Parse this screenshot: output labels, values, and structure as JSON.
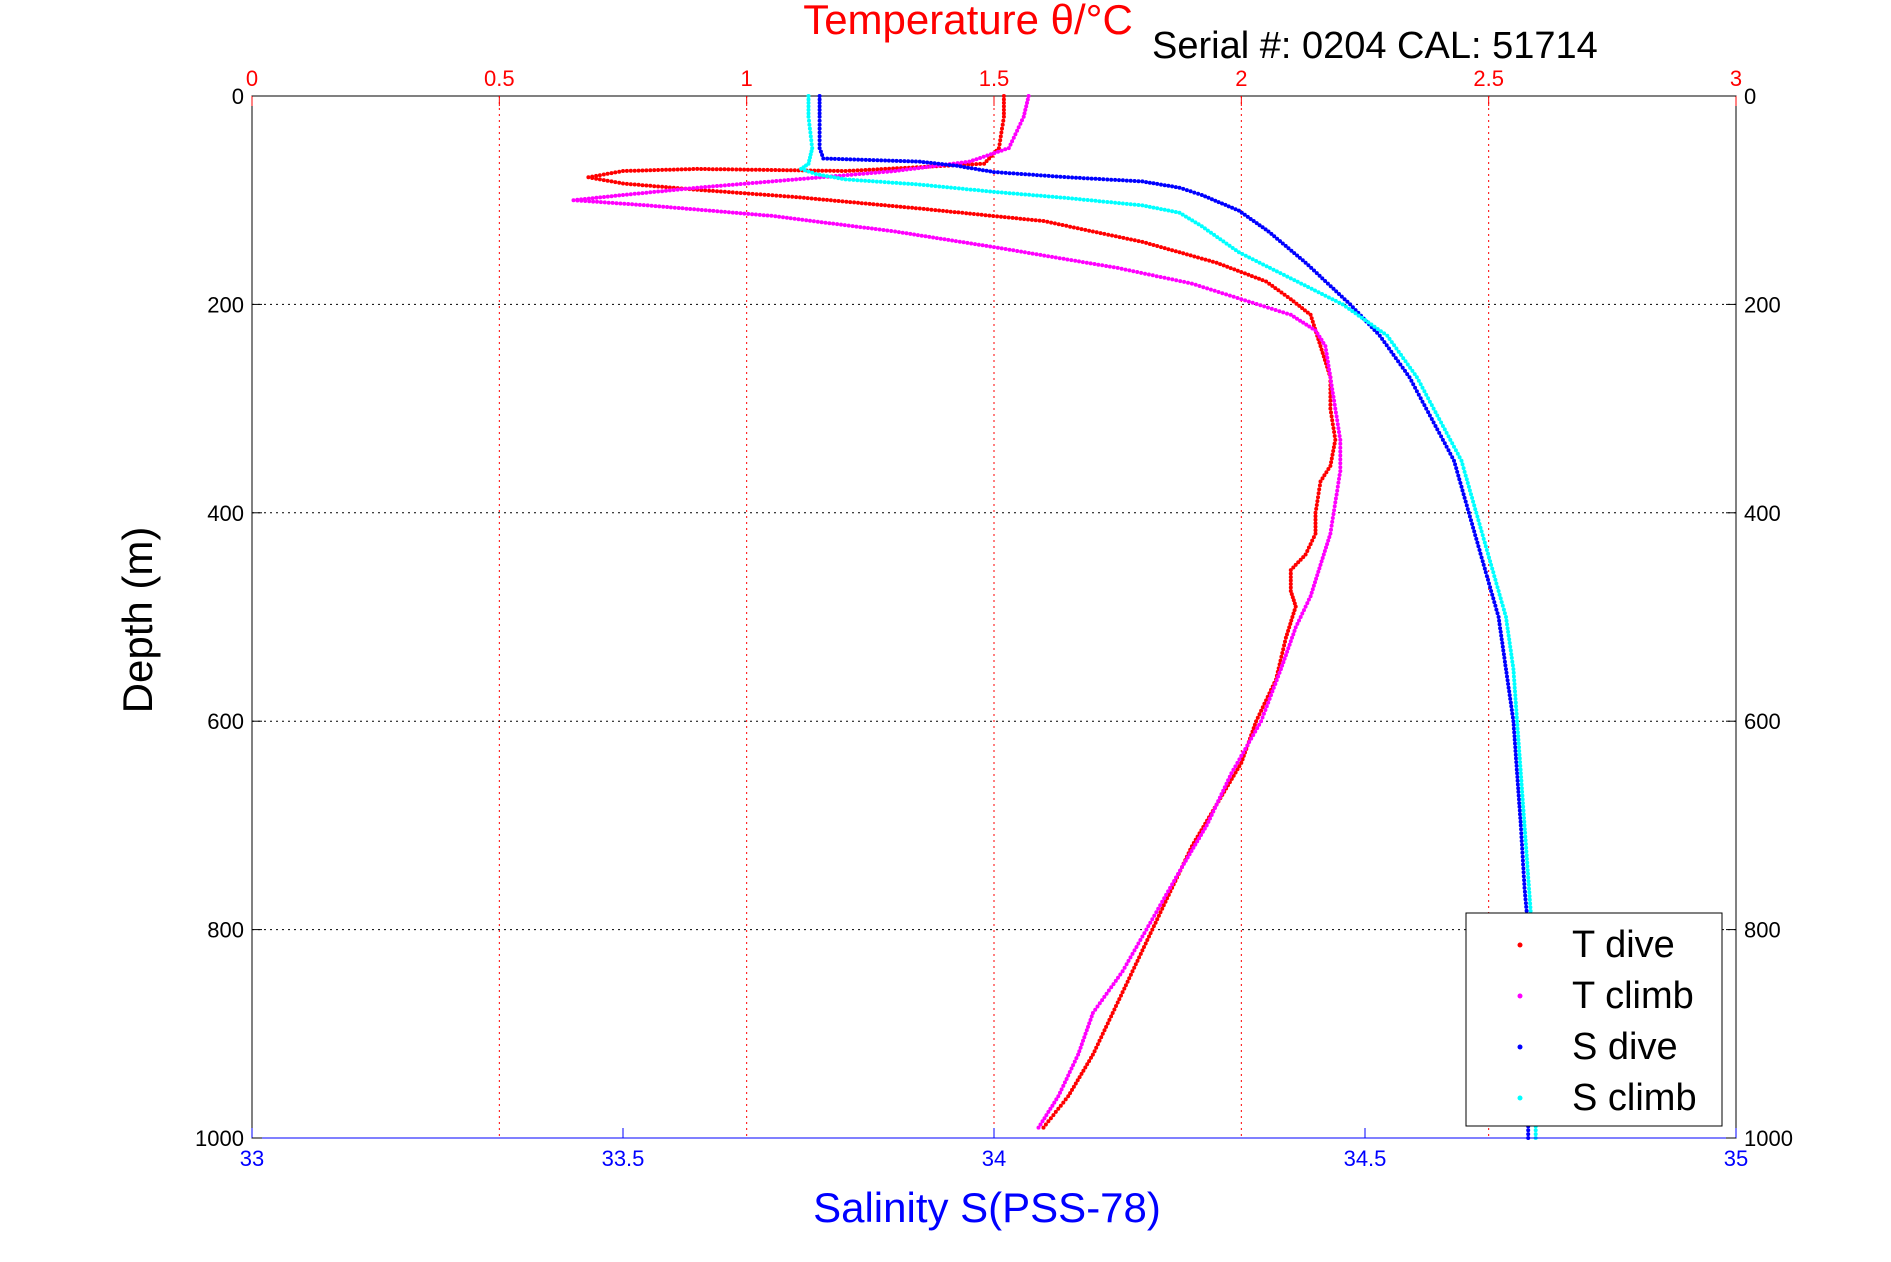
{
  "chart_data": {
    "type": "scatter",
    "title_top": "Temperature θ/°C",
    "serial_note": "Serial #: 0204  CAL: 51714",
    "ylabel": "Depth (m)",
    "xlabel_bottom": "Salinity S(PSS-78)",
    "y_axis": {
      "range": [
        0,
        1000
      ],
      "inverted": true,
      "ticks": [
        "0",
        "200",
        "400",
        "600",
        "800",
        "1000"
      ]
    },
    "x_top": {
      "range": [
        0,
        3
      ],
      "ticks": [
        "0",
        "0.5",
        "1",
        "1.5",
        "2",
        "2.5",
        "3"
      ]
    },
    "x_bottom": {
      "range": [
        33,
        35
      ],
      "ticks": [
        "33",
        "33.5",
        "34",
        "34.5",
        "35"
      ]
    },
    "grid": true,
    "legend_position": "bottom-right",
    "colors": {
      "temperature_axis": "#ff0000",
      "salinity_axis": "#0000ff",
      "t_dive": "#ff0000",
      "t_climb": "#ff00ff",
      "s_dive": "#0000ff",
      "s_climb": "#00ffff",
      "grid": "#000000"
    },
    "series": [
      {
        "name": "T dive",
        "axis": "temperature",
        "color": "#ff0000",
        "points": [
          [
            1.52,
            0
          ],
          [
            1.52,
            20
          ],
          [
            1.51,
            50
          ],
          [
            1.48,
            65
          ],
          [
            1.2,
            72
          ],
          [
            0.9,
            70
          ],
          [
            0.75,
            72
          ],
          [
            0.68,
            78
          ],
          [
            0.75,
            84
          ],
          [
            0.9,
            90
          ],
          [
            1.1,
            97
          ],
          [
            1.35,
            108
          ],
          [
            1.6,
            120
          ],
          [
            1.8,
            140
          ],
          [
            1.95,
            160
          ],
          [
            2.05,
            178
          ],
          [
            2.1,
            195
          ],
          [
            2.14,
            210
          ],
          [
            2.16,
            240
          ],
          [
            2.18,
            270
          ],
          [
            2.18,
            300
          ],
          [
            2.19,
            330
          ],
          [
            2.18,
            355
          ],
          [
            2.16,
            370
          ],
          [
            2.15,
            400
          ],
          [
            2.15,
            420
          ],
          [
            2.13,
            440
          ],
          [
            2.1,
            455
          ],
          [
            2.1,
            475
          ],
          [
            2.11,
            490
          ],
          [
            2.09,
            520
          ],
          [
            2.07,
            560
          ],
          [
            2.03,
            600
          ],
          [
            2.0,
            640
          ],
          [
            1.95,
            680
          ],
          [
            1.9,
            720
          ],
          [
            1.85,
            770
          ],
          [
            1.8,
            820
          ],
          [
            1.75,
            870
          ],
          [
            1.7,
            920
          ],
          [
            1.65,
            960
          ],
          [
            1.6,
            990
          ]
        ]
      },
      {
        "name": "T climb",
        "axis": "temperature",
        "color": "#ff00ff",
        "points": [
          [
            1.57,
            0
          ],
          [
            1.56,
            20
          ],
          [
            1.53,
            50
          ],
          [
            1.45,
            63
          ],
          [
            1.3,
            72
          ],
          [
            1.1,
            80
          ],
          [
            0.9,
            88
          ],
          [
            0.75,
            95
          ],
          [
            0.65,
            100
          ],
          [
            0.8,
            105
          ],
          [
            1.05,
            115
          ],
          [
            1.3,
            130
          ],
          [
            1.5,
            145
          ],
          [
            1.75,
            165
          ],
          [
            1.9,
            180
          ],
          [
            2.0,
            195
          ],
          [
            2.1,
            210
          ],
          [
            2.15,
            225
          ],
          [
            2.17,
            240
          ],
          [
            2.18,
            270
          ],
          [
            2.19,
            300
          ],
          [
            2.2,
            330
          ],
          [
            2.2,
            360
          ],
          [
            2.19,
            390
          ],
          [
            2.18,
            420
          ],
          [
            2.16,
            450
          ],
          [
            2.14,
            480
          ],
          [
            2.11,
            510
          ],
          [
            2.08,
            550
          ],
          [
            2.04,
            600
          ],
          [
            1.98,
            650
          ],
          [
            1.93,
            700
          ],
          [
            1.88,
            740
          ],
          [
            1.82,
            790
          ],
          [
            1.76,
            840
          ],
          [
            1.7,
            880
          ],
          [
            1.67,
            920
          ],
          [
            1.63,
            960
          ],
          [
            1.59,
            990
          ]
        ]
      },
      {
        "name": "S dive",
        "axis": "salinity",
        "color": "#0000ff",
        "points": [
          [
            33.765,
            0
          ],
          [
            33.765,
            20
          ],
          [
            33.765,
            50
          ],
          [
            33.77,
            60
          ],
          [
            33.9,
            63
          ],
          [
            33.95,
            67
          ],
          [
            34.0,
            73
          ],
          [
            34.1,
            78
          ],
          [
            34.2,
            82
          ],
          [
            34.25,
            88
          ],
          [
            34.28,
            95
          ],
          [
            34.33,
            110
          ],
          [
            34.37,
            130
          ],
          [
            34.42,
            160
          ],
          [
            34.45,
            180
          ],
          [
            34.48,
            200
          ],
          [
            34.52,
            230
          ],
          [
            34.56,
            270
          ],
          [
            34.59,
            310
          ],
          [
            34.62,
            350
          ],
          [
            34.64,
            400
          ],
          [
            34.66,
            450
          ],
          [
            34.68,
            500
          ],
          [
            34.69,
            550
          ],
          [
            34.7,
            600
          ],
          [
            34.705,
            650
          ],
          [
            34.71,
            700
          ],
          [
            34.715,
            760
          ],
          [
            34.72,
            800
          ],
          [
            34.72,
            900
          ],
          [
            34.72,
            1000
          ]
        ]
      },
      {
        "name": "S climb",
        "axis": "salinity",
        "color": "#00ffff",
        "points": [
          [
            33.75,
            0
          ],
          [
            33.75,
            20
          ],
          [
            33.755,
            50
          ],
          [
            33.75,
            65
          ],
          [
            33.74,
            70
          ],
          [
            33.76,
            75
          ],
          [
            33.8,
            80
          ],
          [
            33.9,
            85
          ],
          [
            34.0,
            92
          ],
          [
            34.1,
            98
          ],
          [
            34.2,
            105
          ],
          [
            34.25,
            112
          ],
          [
            34.28,
            125
          ],
          [
            34.33,
            150
          ],
          [
            34.4,
            175
          ],
          [
            34.47,
            200
          ],
          [
            34.53,
            230
          ],
          [
            34.57,
            270
          ],
          [
            34.6,
            310
          ],
          [
            34.63,
            350
          ],
          [
            34.65,
            400
          ],
          [
            34.67,
            450
          ],
          [
            34.69,
            500
          ],
          [
            34.7,
            550
          ],
          [
            34.705,
            600
          ],
          [
            34.71,
            650
          ],
          [
            34.715,
            700
          ],
          [
            34.72,
            750
          ],
          [
            34.725,
            800
          ],
          [
            34.73,
            900
          ],
          [
            34.73,
            1000
          ]
        ]
      }
    ]
  }
}
